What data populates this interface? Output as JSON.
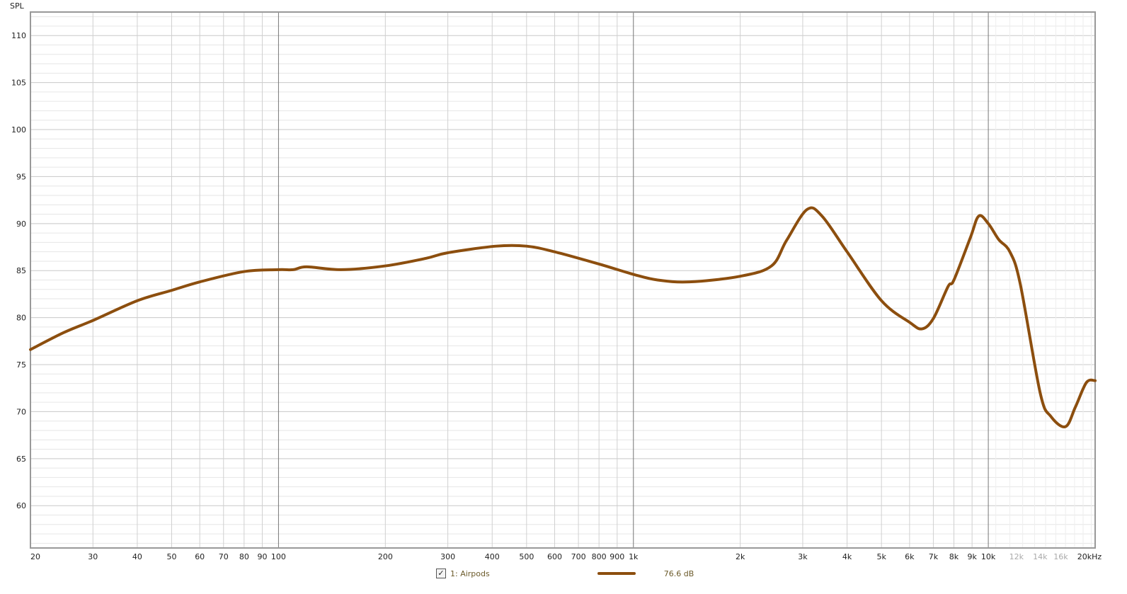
{
  "chart_data": {
    "type": "line",
    "ylabel": "SPL",
    "xscale": "log",
    "xlim": [
      20,
      20000
    ],
    "ylim": [
      55.5,
      112.5
    ],
    "grid": true,
    "yticks": [
      60,
      65,
      70,
      75,
      80,
      85,
      90,
      95,
      100,
      105,
      110
    ],
    "xticks": [
      {
        "v": 20,
        "l": "20"
      },
      {
        "v": 30,
        "l": "30"
      },
      {
        "v": 40,
        "l": "40"
      },
      {
        "v": 50,
        "l": "50"
      },
      {
        "v": 60,
        "l": "60"
      },
      {
        "v": 70,
        "l": "70"
      },
      {
        "v": 80,
        "l": "80"
      },
      {
        "v": 90,
        "l": "90"
      },
      {
        "v": 100,
        "l": "100"
      },
      {
        "v": 200,
        "l": "200"
      },
      {
        "v": 300,
        "l": "300"
      },
      {
        "v": 400,
        "l": "400"
      },
      {
        "v": 500,
        "l": "500"
      },
      {
        "v": 600,
        "l": "600"
      },
      {
        "v": 700,
        "l": "700"
      },
      {
        "v": 800,
        "l": "800"
      },
      {
        "v": 900,
        "l": "900"
      },
      {
        "v": 1000,
        "l": "1k"
      },
      {
        "v": 2000,
        "l": "2k"
      },
      {
        "v": 3000,
        "l": "3k"
      },
      {
        "v": 4000,
        "l": "4k"
      },
      {
        "v": 5000,
        "l": "5k"
      },
      {
        "v": 6000,
        "l": "6k"
      },
      {
        "v": 7000,
        "l": "7k"
      },
      {
        "v": 8000,
        "l": "8k"
      },
      {
        "v": 9000,
        "l": "9k"
      },
      {
        "v": 10000,
        "l": "10k"
      },
      {
        "v": 12000,
        "l": "12k",
        "light": true
      },
      {
        "v": 14000,
        "l": "14k",
        "light": true
      },
      {
        "v": 16000,
        "l": "16k",
        "light": true
      },
      {
        "v": 20000,
        "l": "20kHz"
      }
    ],
    "series": [
      {
        "name": "1: Airpods",
        "color": "#8c4e0e",
        "x": [
          20,
          24.8,
          30,
          40,
          50,
          60,
          80,
          100,
          110,
          120,
          150,
          200,
          260,
          300,
          410,
          500,
          600,
          800,
          1000,
          1170,
          1440,
          2000,
          2450,
          2700,
          3085,
          3400,
          4000,
          5000,
          6000,
          6500,
          7000,
          7700,
          8000,
          8900,
          9400,
          10000,
          10700,
          11500,
          12300,
          14000,
          15000,
          16500,
          17600,
          18900,
          20000
        ],
        "y": [
          76.6,
          78.4,
          79.7,
          81.8,
          82.9,
          83.8,
          84.9,
          85.1,
          85.1,
          85.4,
          85.1,
          85.5,
          86.3,
          86.9,
          87.6,
          87.6,
          87.0,
          85.7,
          84.6,
          84.0,
          83.8,
          84.4,
          85.5,
          88.2,
          91.5,
          90.8,
          87.0,
          81.8,
          79.5,
          78.8,
          79.9,
          83.3,
          84.0,
          88.5,
          90.8,
          90.0,
          88.3,
          87.0,
          83.6,
          72.0,
          69.5,
          68.4,
          70.5,
          73.1,
          73.3
        ]
      }
    ]
  },
  "legend": {
    "checked": true,
    "check_mark": "✓",
    "label": "1: Airpods",
    "value": "76.6 dB"
  }
}
